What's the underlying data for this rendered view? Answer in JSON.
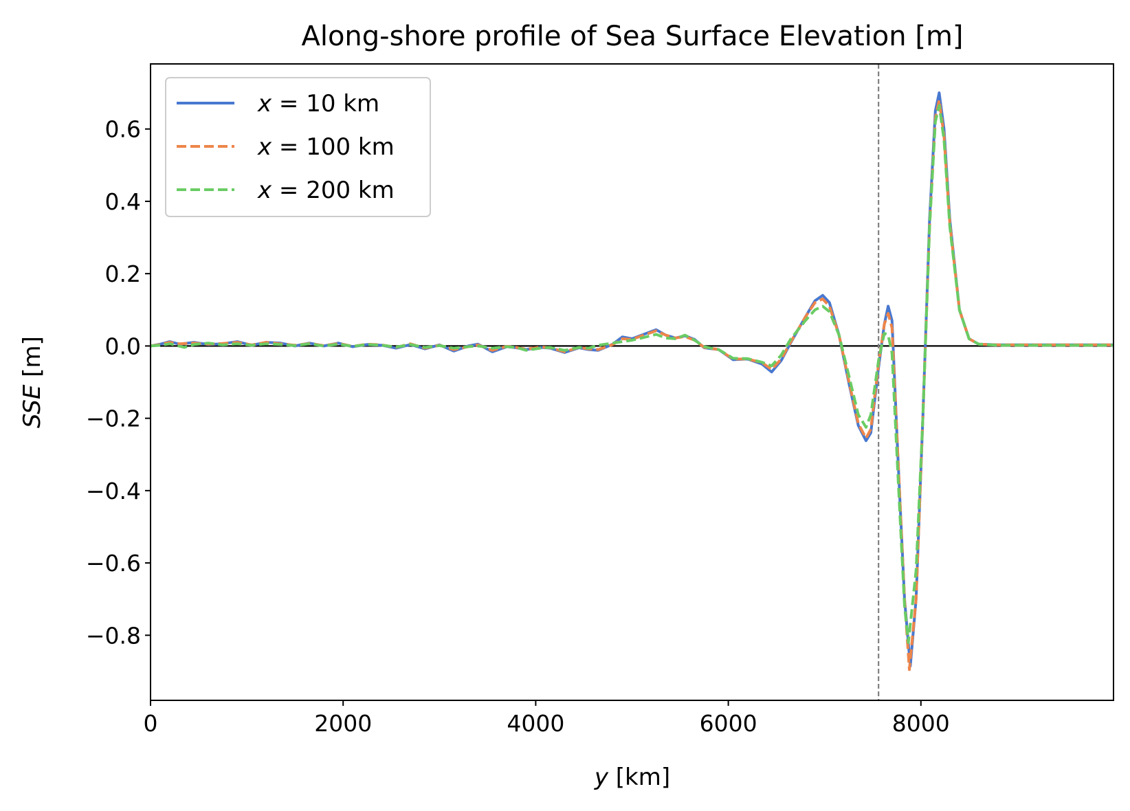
{
  "chart_data": {
    "type": "line",
    "title": "Along-shore profile of Sea Surface Elevation [m]",
    "xlabel": {
      "var": "y",
      "unit": " [km]"
    },
    "ylabel": {
      "var": "SSE",
      "unit": " [m]"
    },
    "xlim": [
      0,
      10000
    ],
    "ylim": [
      -0.98,
      0.78
    ],
    "xticks": [
      0,
      2000,
      4000,
      6000,
      8000
    ],
    "xtick_labels": [
      "0",
      "2000",
      "4000",
      "6000",
      "8000"
    ],
    "yticks": [
      0.6,
      0.4,
      0.2,
      0.0,
      -0.2,
      -0.4,
      -0.6,
      -0.8
    ],
    "ytick_labels": [
      "0.6",
      "0.4",
      "0.2",
      "0.0",
      "−0.2",
      "−0.4",
      "−0.6",
      "−0.8"
    ],
    "grid": false,
    "legend_position": "upper-left",
    "reference_lines": [
      {
        "orientation": "horizontal",
        "value": 0.0,
        "style": "solid",
        "color": "#000000"
      },
      {
        "orientation": "vertical",
        "value": 7560,
        "style": "dashed",
        "color": "#808080"
      }
    ],
    "series": [
      {
        "name": "x = 10 km",
        "legend": {
          "var": "x",
          "text": " = 10 km"
        },
        "color": "#4878d0",
        "style": "solid",
        "points": [
          [
            0,
            0
          ],
          [
            100,
            0.005
          ],
          [
            200,
            0.012
          ],
          [
            300,
            0.005
          ],
          [
            450,
            0.01
          ],
          [
            600,
            0.004
          ],
          [
            750,
            0.006
          ],
          [
            900,
            0.012
          ],
          [
            1050,
            0.002
          ],
          [
            1200,
            0.01
          ],
          [
            1350,
            0.008
          ],
          [
            1500,
            0.0
          ],
          [
            1650,
            0.008
          ],
          [
            1800,
            0.0
          ],
          [
            1950,
            0.008
          ],
          [
            2100,
            -0.002
          ],
          [
            2250,
            0.004
          ],
          [
            2400,
            0.002
          ],
          [
            2550,
            -0.006
          ],
          [
            2700,
            0.004
          ],
          [
            2850,
            -0.008
          ],
          [
            3000,
            0.003
          ],
          [
            3150,
            -0.014
          ],
          [
            3300,
            0.0
          ],
          [
            3400,
            0.005
          ],
          [
            3550,
            -0.016
          ],
          [
            3700,
            -0.002
          ],
          [
            3800,
            -0.005
          ],
          [
            3900,
            -0.01
          ],
          [
            4050,
            -0.004
          ],
          [
            4150,
            -0.006
          ],
          [
            4300,
            -0.018
          ],
          [
            4450,
            -0.005
          ],
          [
            4550,
            -0.01
          ],
          [
            4650,
            -0.012
          ],
          [
            4800,
            0.005
          ],
          [
            4900,
            0.025
          ],
          [
            5000,
            0.02
          ],
          [
            5100,
            0.03
          ],
          [
            5250,
            0.045
          ],
          [
            5350,
            0.03
          ],
          [
            5450,
            0.022
          ],
          [
            5550,
            0.028
          ],
          [
            5650,
            0.018
          ],
          [
            5750,
            -0.005
          ],
          [
            5900,
            -0.01
          ],
          [
            6050,
            -0.038
          ],
          [
            6200,
            -0.036
          ],
          [
            6350,
            -0.05
          ],
          [
            6450,
            -0.072
          ],
          [
            6550,
            -0.04
          ],
          [
            6650,
            0.01
          ],
          [
            6800,
            0.08
          ],
          [
            6900,
            0.125
          ],
          [
            6980,
            0.14
          ],
          [
            7050,
            0.12
          ],
          [
            7150,
            0.03
          ],
          [
            7250,
            -0.1
          ],
          [
            7350,
            -0.22
          ],
          [
            7430,
            -0.262
          ],
          [
            7480,
            -0.24
          ],
          [
            7560,
            -0.06
          ],
          [
            7620,
            0.06
          ],
          [
            7660,
            0.11
          ],
          [
            7700,
            0.07
          ],
          [
            7760,
            -0.3
          ],
          [
            7830,
            -0.7
          ],
          [
            7890,
            -0.885
          ],
          [
            7950,
            -0.7
          ],
          [
            8020,
            -0.2
          ],
          [
            8090,
            0.35
          ],
          [
            8150,
            0.65
          ],
          [
            8190,
            0.7
          ],
          [
            8240,
            0.6
          ],
          [
            8300,
            0.35
          ],
          [
            8400,
            0.1
          ],
          [
            8500,
            0.02
          ],
          [
            8600,
            0.005
          ],
          [
            8800,
            0.003
          ],
          [
            10000,
            0.003
          ]
        ]
      },
      {
        "name": "x = 100 km",
        "legend": {
          "var": "x",
          "text": " = 100 km"
        },
        "color": "#ee854a",
        "style": "dashed",
        "points": [
          [
            0,
            0
          ],
          [
            100,
            0.004
          ],
          [
            200,
            0.01
          ],
          [
            300,
            0.006
          ],
          [
            450,
            0.008
          ],
          [
            600,
            0.005
          ],
          [
            750,
            0.007
          ],
          [
            900,
            0.01
          ],
          [
            1050,
            0.003
          ],
          [
            1200,
            0.01
          ],
          [
            1350,
            0.006
          ],
          [
            1500,
            0.002
          ],
          [
            1650,
            0.007
          ],
          [
            1800,
            0.001
          ],
          [
            1950,
            0.007
          ],
          [
            2100,
            -0.001
          ],
          [
            2250,
            0.005
          ],
          [
            2400,
            0.003
          ],
          [
            2550,
            -0.004
          ],
          [
            2700,
            0.006
          ],
          [
            2850,
            -0.006
          ],
          [
            3000,
            0.002
          ],
          [
            3150,
            -0.01
          ],
          [
            3300,
            -0.002
          ],
          [
            3400,
            0.003
          ],
          [
            3550,
            -0.012
          ],
          [
            3700,
            -0.001
          ],
          [
            3800,
            -0.004
          ],
          [
            3900,
            -0.009
          ],
          [
            4050,
            -0.003
          ],
          [
            4150,
            -0.005
          ],
          [
            4300,
            -0.016
          ],
          [
            4450,
            -0.004
          ],
          [
            4550,
            -0.008
          ],
          [
            4650,
            -0.01
          ],
          [
            4800,
            0.004
          ],
          [
            4900,
            0.02
          ],
          [
            5000,
            0.018
          ],
          [
            5100,
            0.028
          ],
          [
            5250,
            0.042
          ],
          [
            5350,
            0.03
          ],
          [
            5450,
            0.022
          ],
          [
            5550,
            0.026
          ],
          [
            5650,
            0.016
          ],
          [
            5750,
            -0.004
          ],
          [
            5900,
            -0.01
          ],
          [
            6050,
            -0.036
          ],
          [
            6200,
            -0.036
          ],
          [
            6350,
            -0.046
          ],
          [
            6450,
            -0.065
          ],
          [
            6550,
            -0.036
          ],
          [
            6650,
            0.012
          ],
          [
            6800,
            0.08
          ],
          [
            6900,
            0.12
          ],
          [
            6980,
            0.13
          ],
          [
            7050,
            0.11
          ],
          [
            7150,
            0.03
          ],
          [
            7250,
            -0.095
          ],
          [
            7350,
            -0.215
          ],
          [
            7430,
            -0.255
          ],
          [
            7480,
            -0.23
          ],
          [
            7560,
            -0.05
          ],
          [
            7620,
            0.06
          ],
          [
            7660,
            0.09
          ],
          [
            7700,
            0.05
          ],
          [
            7760,
            -0.3
          ],
          [
            7830,
            -0.7
          ],
          [
            7880,
            -0.895
          ],
          [
            7950,
            -0.7
          ],
          [
            8020,
            -0.2
          ],
          [
            8090,
            0.33
          ],
          [
            8150,
            0.63
          ],
          [
            8190,
            0.68
          ],
          [
            8240,
            0.58
          ],
          [
            8300,
            0.34
          ],
          [
            8400,
            0.1
          ],
          [
            8500,
            0.02
          ],
          [
            8600,
            0.005
          ],
          [
            8800,
            0.003
          ],
          [
            10000,
            0.003
          ]
        ]
      },
      {
        "name": "x = 200 km",
        "legend": {
          "var": "x",
          "text": " = 200 km"
        },
        "color": "#6acc64",
        "style": "dashed",
        "points": [
          [
            0,
            0
          ],
          [
            100,
            0.002
          ],
          [
            200,
            0.006
          ],
          [
            350,
            -0.004
          ],
          [
            450,
            0.004
          ],
          [
            600,
            0.008
          ],
          [
            750,
            0.003
          ],
          [
            900,
            0.006
          ],
          [
            1050,
            0.002
          ],
          [
            1200,
            0.006
          ],
          [
            1350,
            0.004
          ],
          [
            1500,
            0.001
          ],
          [
            1650,
            0.006
          ],
          [
            1800,
            0.0
          ],
          [
            1950,
            0.005
          ],
          [
            2100,
            -0.001
          ],
          [
            2250,
            0.004
          ],
          [
            2400,
            0.002
          ],
          [
            2550,
            -0.003
          ],
          [
            2700,
            0.004
          ],
          [
            2850,
            -0.004
          ],
          [
            3000,
            0.001
          ],
          [
            3150,
            -0.006
          ],
          [
            3300,
            -0.002
          ],
          [
            3400,
            0.0
          ],
          [
            3550,
            -0.006
          ],
          [
            3700,
            -0.002
          ],
          [
            3800,
            -0.004
          ],
          [
            3900,
            -0.012
          ],
          [
            4050,
            -0.006
          ],
          [
            4150,
            -0.004
          ],
          [
            4300,
            -0.012
          ],
          [
            4450,
            -0.004
          ],
          [
            4550,
            -0.006
          ],
          [
            4650,
            0.002
          ],
          [
            4800,
            0.008
          ],
          [
            4900,
            0.012
          ],
          [
            5000,
            0.016
          ],
          [
            5100,
            0.022
          ],
          [
            5250,
            0.032
          ],
          [
            5350,
            0.022
          ],
          [
            5450,
            0.02
          ],
          [
            5550,
            0.03
          ],
          [
            5650,
            0.016
          ],
          [
            5750,
            -0.002
          ],
          [
            5900,
            -0.01
          ],
          [
            6050,
            -0.034
          ],
          [
            6200,
            -0.035
          ],
          [
            6350,
            -0.045
          ],
          [
            6450,
            -0.055
          ],
          [
            6550,
            -0.025
          ],
          [
            6650,
            0.02
          ],
          [
            6800,
            0.07
          ],
          [
            6900,
            0.1
          ],
          [
            6980,
            0.11
          ],
          [
            7050,
            0.095
          ],
          [
            7150,
            0.03
          ],
          [
            7250,
            -0.08
          ],
          [
            7350,
            -0.19
          ],
          [
            7430,
            -0.225
          ],
          [
            7480,
            -0.19
          ],
          [
            7560,
            -0.04
          ],
          [
            7620,
            0.035
          ],
          [
            7660,
            0.03
          ],
          [
            7700,
            -0.02
          ],
          [
            7760,
            -0.35
          ],
          [
            7830,
            -0.72
          ],
          [
            7870,
            -0.82
          ],
          [
            7950,
            -0.62
          ],
          [
            8020,
            -0.2
          ],
          [
            8090,
            0.33
          ],
          [
            8150,
            0.62
          ],
          [
            8190,
            0.665
          ],
          [
            8240,
            0.57
          ],
          [
            8300,
            0.33
          ],
          [
            8400,
            0.1
          ],
          [
            8500,
            0.02
          ],
          [
            8600,
            0.005
          ],
          [
            8800,
            0.002
          ],
          [
            10000,
            0.002
          ]
        ]
      }
    ]
  }
}
